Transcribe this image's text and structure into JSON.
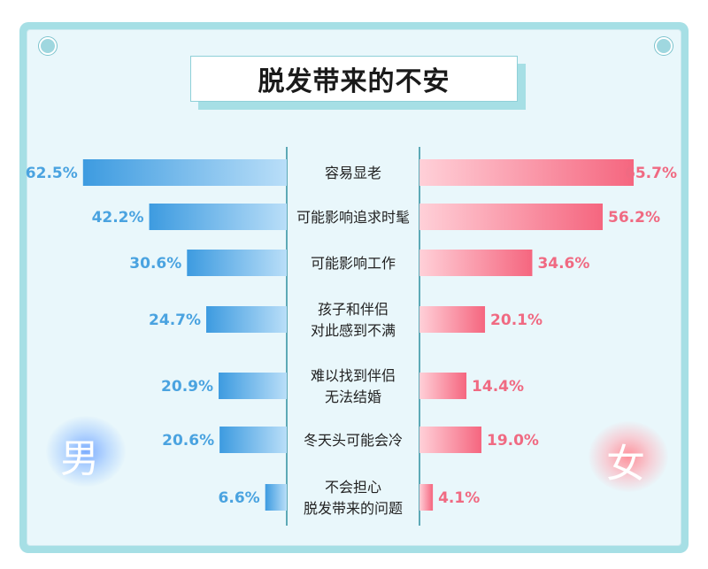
{
  "title": "脱发带来的不安",
  "labels": {
    "male": "男",
    "female": "女"
  },
  "chart_data": {
    "type": "bar",
    "title": "脱发带来的不安",
    "layout": "butterfly",
    "categories": [
      [
        "容易显老"
      ],
      [
        "可能影响追求时髦"
      ],
      [
        "可能影响工作"
      ],
      [
        "孩子和伴侣",
        "对此感到不满"
      ],
      [
        "难以找到伴侣",
        "无法结婚"
      ],
      [
        "冬天头可能会冷"
      ],
      [
        "不会担心",
        "脱发带来的问题"
      ]
    ],
    "series": [
      {
        "name": "男",
        "values": [
          62.5,
          42.2,
          30.6,
          24.7,
          20.9,
          20.6,
          6.6
        ],
        "labels": [
          "62.5%",
          "42.2%",
          "30.6%",
          "24.7%",
          "20.9%",
          "20.6%",
          "6.6%"
        ],
        "color": "#4aa3e0"
      },
      {
        "name": "女",
        "values": [
          65.7,
          56.2,
          34.6,
          20.1,
          14.4,
          19.0,
          4.1
        ],
        "labels": [
          "65.7%",
          "56.2%",
          "34.6%",
          "20.1%",
          "14.4%",
          "19.0%",
          "4.1%"
        ],
        "color": "#f06a82"
      }
    ],
    "xlim": [
      0,
      65.7
    ]
  },
  "colors": {
    "frame": "#a6dfe5",
    "background": "#e9f7fb",
    "male": "#4aa3e0",
    "female": "#f06a82",
    "divider": "#2f8fa0"
  }
}
